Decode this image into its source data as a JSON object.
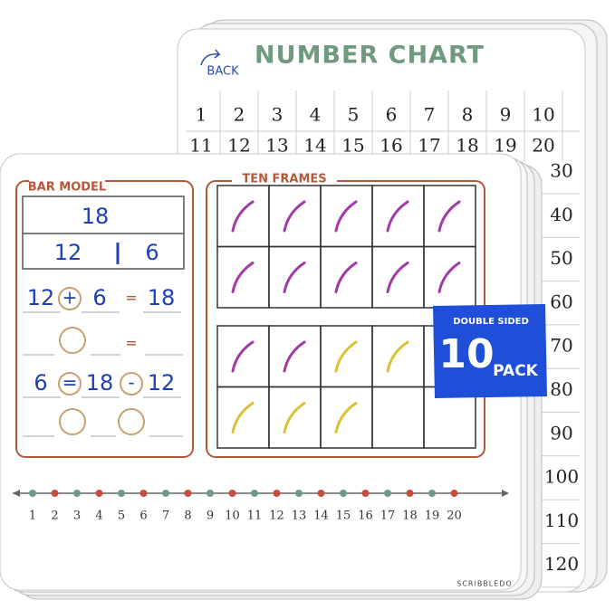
{
  "back_board": {
    "back_label": "BACK",
    "title": "NUMBER CHART",
    "row_1": [
      1,
      2,
      3,
      4,
      5,
      6,
      7,
      8,
      9,
      10
    ],
    "row_2": [
      11,
      12,
      13,
      14,
      15,
      16,
      17,
      18,
      19,
      20
    ],
    "right_column": [
      30,
      40,
      50,
      60,
      70,
      80,
      90,
      100,
      110,
      120
    ]
  },
  "front_board": {
    "bar_model": {
      "title": "BAR MODEL",
      "whole": "18",
      "parts": [
        "12",
        "6"
      ],
      "equation_1": [
        "12",
        "+",
        "6",
        "=",
        "18"
      ],
      "blank_equals": "=",
      "equation_3": [
        "6",
        "=",
        "18",
        "-",
        "12"
      ]
    },
    "ten_frames": {
      "title": "TEN FRAMES"
    },
    "number_line": [
      1,
      2,
      3,
      4,
      5,
      6,
      7,
      8,
      9,
      10,
      11,
      12,
      13,
      14,
      15,
      16,
      17,
      18,
      19,
      20
    ],
    "brand": "SCRIBBLEDO"
  },
  "badge": {
    "top": "DOUBLE SIDED",
    "number": "10",
    "unit": "PACK"
  }
}
